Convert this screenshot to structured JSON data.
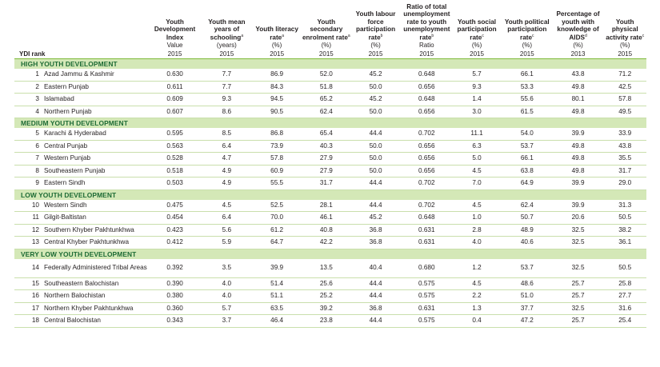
{
  "headers": [
    {
      "label": "Youth Development Index",
      "sup": "",
      "unit": "Value",
      "year": "2015"
    },
    {
      "label": "Youth mean years of schooling",
      "sup": "a",
      "unit": "(years)",
      "year": "2015"
    },
    {
      "label": "Youth literacy rate",
      "sup": "a",
      "unit": "(%)",
      "year": "2015"
    },
    {
      "label": "Youth secondary enrolment rate",
      "sup": "a",
      "unit": "(%)",
      "year": "2015"
    },
    {
      "label": "Youth labour force participation rate",
      "sup": "b",
      "unit": "(%)",
      "year": "2015"
    },
    {
      "label": "Ratio of total unemployment rate to youth unemployment rate",
      "sup": "b",
      "unit": "Ratio",
      "year": "2015"
    },
    {
      "label": "Youth social participation rate",
      "sup": "c",
      "unit": "(%)",
      "year": "2015"
    },
    {
      "label": "Youth political participation rate",
      "sup": "c",
      "unit": "(%)",
      "year": "2015"
    },
    {
      "label": "Percentage of youth with knowledge of AIDS",
      "sup": "d",
      "unit": "(%)",
      "year": "2013"
    },
    {
      "label": "Youth physical activity rate",
      "sup": "c",
      "unit": "(%)",
      "year": "2015"
    }
  ],
  "rank_header": "YDI rank",
  "sections": [
    {
      "title": "HIGH YOUTH DEVELOPMENT",
      "rows": [
        {
          "rank": "1",
          "name": "Azad Jammu & Kashmir",
          "values": [
            "0.630",
            "7.7",
            "86.9",
            "52.0",
            "45.2",
            "0.648",
            "5.7",
            "66.1",
            "43.8",
            "71.2"
          ]
        },
        {
          "rank": "2",
          "name": "Eastern Punjab",
          "values": [
            "0.611",
            "7.7",
            "84.3",
            "51.8",
            "50.0",
            "0.656",
            "9.3",
            "53.3",
            "49.8",
            "42.5"
          ]
        },
        {
          "rank": "3",
          "name": "Islamabad",
          "values": [
            "0.609",
            "9.3",
            "94.5",
            "65.2",
            "45.2",
            "0.648",
            "1.4",
            "55.6",
            "80.1",
            "57.8"
          ]
        },
        {
          "rank": "4",
          "name": "Northern Punjab",
          "values": [
            "0.607",
            "8.6",
            "90.5",
            "62.4",
            "50.0",
            "0.656",
            "3.0",
            "61.5",
            "49.8",
            "49.5"
          ]
        }
      ]
    },
    {
      "title": "MEDIUM YOUTH DEVELOPMENT",
      "rows": [
        {
          "rank": "5",
          "name": "Karachi & Hyderabad",
          "values": [
            "0.595",
            "8.5",
            "86.8",
            "65.4",
            "44.4",
            "0.702",
            "11.1",
            "54.0",
            "39.9",
            "33.9"
          ]
        },
        {
          "rank": "6",
          "name": "Central Punjab",
          "values": [
            "0.563",
            "6.4",
            "73.9",
            "40.3",
            "50.0",
            "0.656",
            "6.3",
            "53.7",
            "49.8",
            "43.8"
          ]
        },
        {
          "rank": "7",
          "name": "Western Punjab",
          "values": [
            "0.528",
            "4.7",
            "57.8",
            "27.9",
            "50.0",
            "0.656",
            "5.0",
            "66.1",
            "49.8",
            "35.5"
          ]
        },
        {
          "rank": "8",
          "name": "Southeastern Punjab",
          "values": [
            "0.518",
            "4.9",
            "60.9",
            "27.9",
            "50.0",
            "0.656",
            "4.5",
            "63.8",
            "49.8",
            "31.7"
          ]
        },
        {
          "rank": "9",
          "name": "Eastern Sindh",
          "values": [
            "0.503",
            "4.9",
            "55.5",
            "31.7",
            "44.4",
            "0.702",
            "7.0",
            "64.9",
            "39.9",
            "29.0"
          ]
        }
      ]
    },
    {
      "title": "LOW YOUTH DEVELOPMENT",
      "rows": [
        {
          "rank": "10",
          "name": "Western Sindh",
          "values": [
            "0.475",
            "4.5",
            "52.5",
            "28.1",
            "44.4",
            "0.702",
            "4.5",
            "62.4",
            "39.9",
            "31.3"
          ]
        },
        {
          "rank": "11",
          "name": "Gilgit-Baltistan",
          "values": [
            "0.454",
            "6.4",
            "70.0",
            "46.1",
            "45.2",
            "0.648",
            "1.0",
            "50.7",
            "20.6",
            "50.5"
          ]
        },
        {
          "rank": "12",
          "name": "Southern Khyber Pakhtunkhwa",
          "values": [
            "0.423",
            "5.6",
            "61.2",
            "40.8",
            "36.8",
            "0.631",
            "2.8",
            "48.9",
            "32.5",
            "38.2"
          ]
        },
        {
          "rank": "13",
          "name": "Central Khyber Pakhtunkhwa",
          "values": [
            "0.412",
            "5.9",
            "64.7",
            "42.2",
            "36.8",
            "0.631",
            "4.0",
            "40.6",
            "32.5",
            "36.1"
          ]
        }
      ]
    },
    {
      "title": "VERY LOW YOUTH DEVELOPMENT",
      "rows": [
        {
          "rank": "14",
          "name": "Federally Administered Tribal Areas",
          "values": [
            "0.392",
            "3.5",
            "39.9",
            "13.5",
            "40.4",
            "0.680",
            "1.2",
            "53.7",
            "32.5",
            "50.5"
          ]
        },
        {
          "rank": "15",
          "name": "Southeastern Balochistan",
          "values": [
            "0.390",
            "4.0",
            "51.4",
            "25.6",
            "44.4",
            "0.575",
            "4.5",
            "48.6",
            "25.7",
            "25.8"
          ]
        },
        {
          "rank": "16",
          "name": "Northern Balochistan",
          "values": [
            "0.380",
            "4.0",
            "51.1",
            "25.2",
            "44.4",
            "0.575",
            "2.2",
            "51.0",
            "25.7",
            "27.7"
          ]
        },
        {
          "rank": "17",
          "name": "Northern Khyber Pakhtunkhwa",
          "values": [
            "0.360",
            "5.7",
            "63.5",
            "39.2",
            "36.8",
            "0.631",
            "1.3",
            "37.7",
            "32.5",
            "31.6"
          ]
        },
        {
          "rank": "18",
          "name": "Central Balochistan",
          "values": [
            "0.343",
            "3.7",
            "46.4",
            "23.8",
            "44.4",
            "0.575",
            "0.4",
            "47.2",
            "25.7",
            "25.4"
          ]
        }
      ]
    }
  ]
}
